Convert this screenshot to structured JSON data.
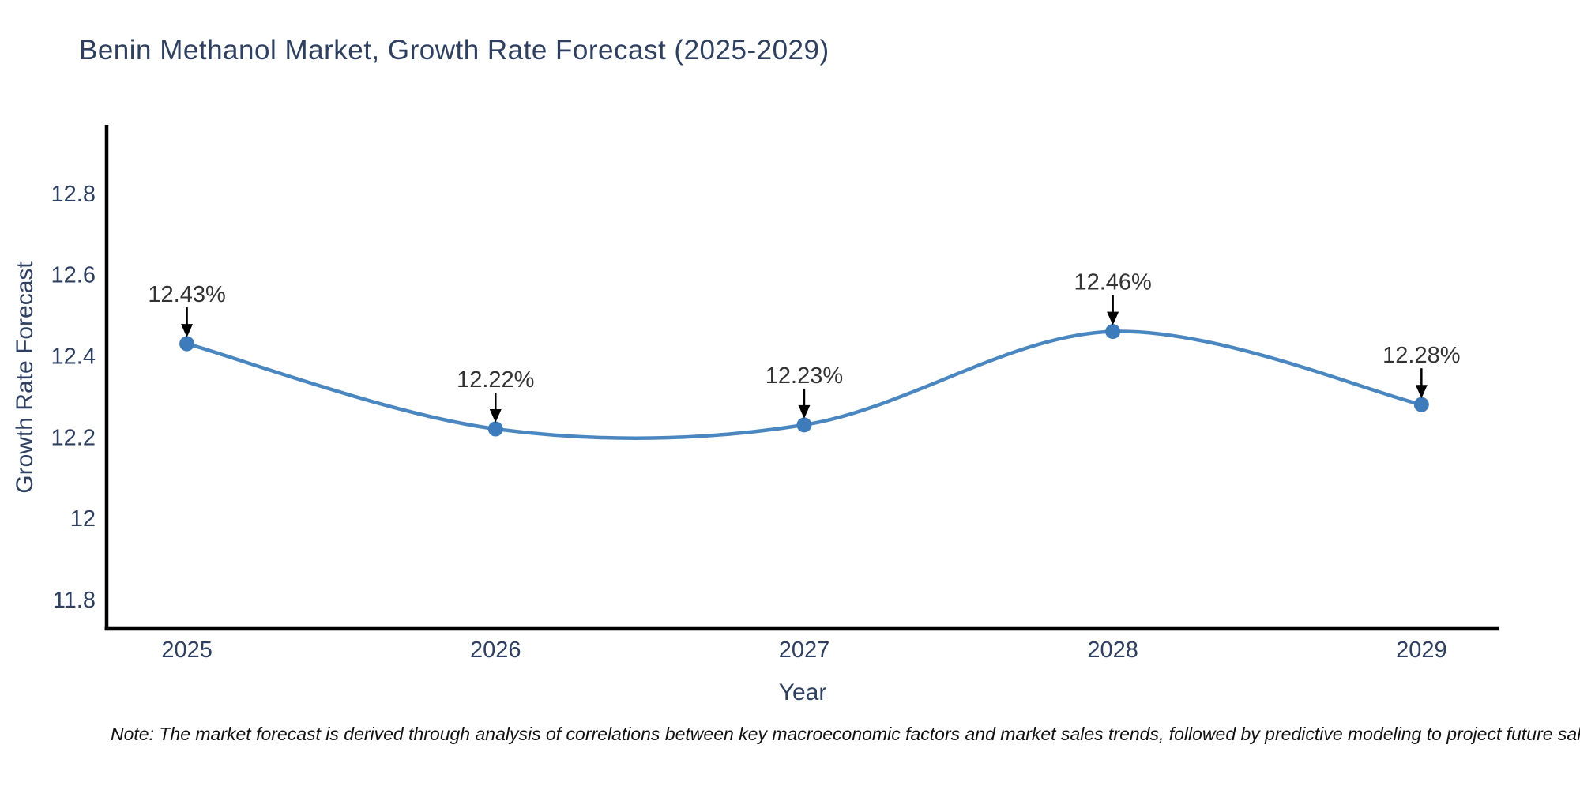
{
  "header": {
    "title": "Benin Methanol Market, Growth Rate Forecast (2025-2029)"
  },
  "chart_data": {
    "type": "line",
    "title": "Benin Methanol Market, Growth Rate Forecast (2025-2029)",
    "xlabel": "Year",
    "ylabel": "Growth Rate Forecast",
    "categories": [
      2025,
      2026,
      2027,
      2028,
      2029
    ],
    "series": [
      {
        "name": "Growth Rate Forecast",
        "values": [
          12.43,
          12.22,
          12.23,
          12.46,
          12.28
        ]
      }
    ],
    "point_labels": [
      "12.43%",
      "12.22%",
      "12.23%",
      "12.46%",
      "12.28%"
    ],
    "xtick_labels": [
      "2025",
      "2026",
      "2027",
      "2028",
      "2029"
    ],
    "ytick_values": [
      11.8,
      12.0,
      12.2,
      12.4,
      12.6,
      12.8
    ],
    "ytick_labels": [
      "11.8",
      "12",
      "12.2",
      "12.4",
      "12.6",
      "12.8"
    ],
    "xlim": [
      2024.74,
      2029.25
    ],
    "ylim": [
      11.728,
      12.965
    ],
    "line_shape": "spline",
    "grid": false,
    "legend_position": "none",
    "colors": {
      "line": "#4a87c0",
      "marker": "#3d7bba",
      "axis_line": "#000000",
      "tick_text": "#2e3f5f",
      "annotation_text": "#333333",
      "arrow": "#000000"
    }
  },
  "footer": {
    "note": "Note: The market forecast is derived through analysis of correlations between key macroeconomic factors and market sales trends, followed by predictive modeling to project future sal"
  }
}
